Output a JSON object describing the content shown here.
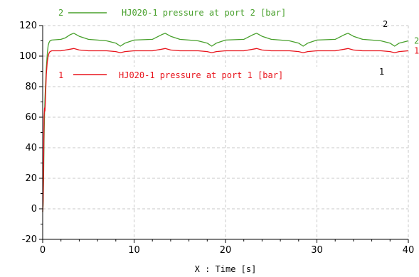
{
  "chart_data": {
    "type": "line",
    "xlabel": "X : Time [s]",
    "xlim": [
      0,
      40
    ],
    "ylim": [
      -20,
      120
    ],
    "x_ticks": [
      0,
      10,
      20,
      30,
      40
    ],
    "y_ticks": [
      -20,
      0,
      20,
      40,
      60,
      80,
      100,
      120
    ],
    "grid": true,
    "legend_placement": "inline-top",
    "series": [
      {
        "id": "1",
        "name": "HJ020-1 pressure at port 1 [bar]",
        "color": "#e8141c",
        "end_label": "1",
        "x": [
          0,
          0.05,
          0.1,
          0.15,
          0.2,
          0.25,
          0.3,
          0.4,
          0.5,
          0.6,
          0.7,
          0.8,
          1,
          2,
          3,
          3.4,
          4,
          5,
          6,
          7,
          8,
          8.5,
          9,
          10,
          11,
          12,
          13,
          13.4,
          14,
          15,
          16,
          17,
          18,
          18.5,
          19,
          20,
          21,
          22,
          23,
          23.4,
          24,
          25,
          26,
          27,
          28,
          28.5,
          29,
          30,
          31,
          32,
          33,
          33.4,
          34,
          35,
          36,
          37,
          38,
          38.5,
          39,
          40
        ],
        "y": [
          -2,
          5,
          30,
          60,
          66,
          64,
          72,
          88,
          96,
          100,
          102,
          103,
          103.5,
          103.5,
          104.5,
          105,
          104,
          103.5,
          103.5,
          103.5,
          103,
          102.2,
          103,
          103.5,
          103.5,
          103.5,
          104.5,
          105,
          104,
          103.5,
          103.5,
          103.5,
          103,
          102.2,
          103,
          103.5,
          103.5,
          103.5,
          104.5,
          105,
          104,
          103.5,
          103.5,
          103.5,
          103,
          102.2,
          103,
          103.5,
          103.5,
          103.5,
          104.5,
          105,
          104,
          103.5,
          103.5,
          103.5,
          103,
          102.2,
          103,
          103.5
        ]
      },
      {
        "id": "2",
        "name": "HJ020-1 pressure at port 2 [bar]",
        "color": "#48a02c",
        "end_label": "2",
        "x": [
          0,
          0.05,
          0.1,
          0.15,
          0.2,
          0.25,
          0.3,
          0.4,
          0.5,
          0.6,
          0.7,
          0.8,
          1,
          2,
          2.5,
          3,
          3.4,
          4,
          5,
          6,
          7,
          8,
          8.5,
          9,
          10,
          12,
          13,
          13.4,
          14,
          15,
          16,
          17,
          18,
          18.5,
          19,
          20,
          22,
          23,
          23.4,
          24,
          25,
          26,
          27,
          28,
          28.5,
          29,
          30,
          32,
          33,
          33.4,
          34,
          35,
          36,
          37,
          38,
          38.5,
          39,
          40
        ],
        "y": [
          -2,
          2,
          20,
          45,
          62,
          72,
          80,
          92,
          101,
          107,
          109,
          110,
          110.5,
          111,
          112,
          114,
          115,
          113,
          111,
          110.5,
          110,
          108.5,
          106.5,
          108.5,
          110.5,
          111,
          114,
          115,
          113,
          111,
          110.5,
          110,
          108.5,
          106.5,
          108.5,
          110.5,
          111,
          114,
          115,
          113,
          111,
          110.5,
          110,
          108.5,
          106.5,
          108.5,
          110.5,
          111,
          114,
          115,
          113,
          111,
          110.5,
          110,
          108.5,
          106.5,
          108.5,
          110
        ]
      }
    ],
    "annotations": [
      {
        "text": "2",
        "x": 37.2,
        "y": 119,
        "color": "#000000"
      },
      {
        "text": "1",
        "x": 36.8,
        "y": 88,
        "color": "#000000"
      }
    ]
  }
}
